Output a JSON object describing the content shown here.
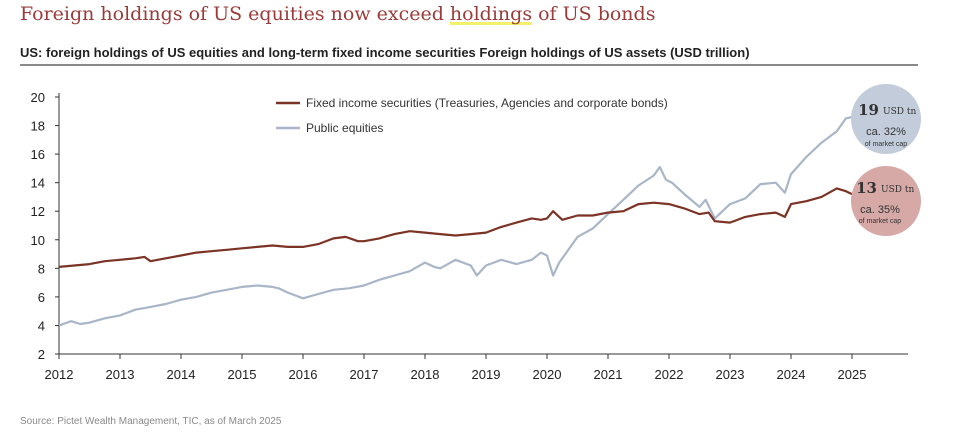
{
  "header": {
    "title_pre": "Foreign holdings of US equities now exceed ",
    "title_mark": "holdings",
    "title_post": " of US bonds",
    "subtitle": "US: foreign holdings of US equities and long-term fixed income securities Foreign holdings of US assets (USD trillion)"
  },
  "footer": {
    "source": "Source: Pictet Wealth Management, TIC, as of March 2025"
  },
  "colors": {
    "fixed_income": "#7b3325",
    "equities": "#a9b6c8",
    "bubble_equities": "#c3ccdb",
    "bubble_fixed": "#d6a9a7"
  },
  "bubbles": [
    {
      "series": "equities",
      "value": "19",
      "unit": "USD tn",
      "pct": "ca. 32%",
      "note": "of market cap"
    },
    {
      "series": "fixed_income",
      "value": "13",
      "unit": "USD tn",
      "pct": "ca. 35%",
      "note": "of market cap"
    }
  ],
  "chart_data": {
    "type": "line",
    "title": "Foreign holdings of US equities now exceed holdings of US bonds",
    "subtitle": "US: foreign holdings of US equities and long-term fixed income securities Foreign holdings of US assets (USD trillion)",
    "xlabel": "",
    "ylabel": "",
    "xlim": [
      2012,
      2026
    ],
    "ylim": [
      2,
      20
    ],
    "yticks": [
      2,
      4,
      6,
      8,
      10,
      12,
      14,
      16,
      18,
      20
    ],
    "xticks": [
      2012,
      2013,
      2014,
      2015,
      2016,
      2017,
      2018,
      2019,
      2020,
      2021,
      2022,
      2023,
      2024,
      2025
    ],
    "grid": false,
    "legend": "top-center",
    "series": [
      {
        "key": "fixed_income",
        "name": "Fixed income securities (Treasuries, Agencies and corporate bonds)",
        "x": [
          2012.0,
          2012.25,
          2012.5,
          2012.75,
          2013.0,
          2013.25,
          2013.4,
          2013.5,
          2013.75,
          2014.0,
          2014.25,
          2014.5,
          2014.75,
          2015.0,
          2015.25,
          2015.5,
          2015.75,
          2016.0,
          2016.25,
          2016.5,
          2016.7,
          2016.9,
          2017.0,
          2017.25,
          2017.5,
          2017.75,
          2018.0,
          2018.25,
          2018.5,
          2018.75,
          2019.0,
          2019.25,
          2019.5,
          2019.75,
          2019.9,
          2020.0,
          2020.1,
          2020.25,
          2020.5,
          2020.75,
          2021.0,
          2021.25,
          2021.5,
          2021.75,
          2022.0,
          2022.25,
          2022.5,
          2022.65,
          2022.75,
          2023.0,
          2023.25,
          2023.5,
          2023.75,
          2023.9,
          2024.0,
          2024.25,
          2024.5,
          2024.75,
          2024.9,
          2025.0,
          2025.08
        ],
        "y": [
          8.1,
          8.2,
          8.3,
          8.5,
          8.6,
          8.7,
          8.8,
          8.5,
          8.7,
          8.9,
          9.1,
          9.2,
          9.3,
          9.4,
          9.5,
          9.6,
          9.5,
          9.5,
          9.7,
          10.1,
          10.2,
          9.9,
          9.9,
          10.1,
          10.4,
          10.6,
          10.5,
          10.4,
          10.3,
          10.4,
          10.5,
          10.9,
          11.2,
          11.5,
          11.4,
          11.5,
          12.0,
          11.4,
          11.7,
          11.7,
          11.9,
          12.0,
          12.5,
          12.6,
          12.5,
          12.2,
          11.8,
          11.9,
          11.3,
          11.2,
          11.6,
          11.8,
          11.9,
          11.6,
          12.5,
          12.7,
          13.0,
          13.6,
          13.4,
          13.2,
          13.3
        ]
      },
      {
        "key": "equities",
        "name": "Public equities",
        "x": [
          2012.0,
          2012.2,
          2012.35,
          2012.5,
          2012.75,
          2013.0,
          2013.25,
          2013.5,
          2013.75,
          2014.0,
          2014.25,
          2014.5,
          2014.75,
          2015.0,
          2015.25,
          2015.5,
          2015.6,
          2015.75,
          2016.0,
          2016.25,
          2016.5,
          2016.75,
          2017.0,
          2017.25,
          2017.5,
          2017.75,
          2018.0,
          2018.15,
          2018.25,
          2018.5,
          2018.75,
          2018.85,
          2019.0,
          2019.25,
          2019.5,
          2019.75,
          2019.9,
          2020.0,
          2020.1,
          2020.2,
          2020.3,
          2020.5,
          2020.75,
          2021.0,
          2021.25,
          2021.5,
          2021.75,
          2021.85,
          2021.95,
          2022.05,
          2022.25,
          2022.5,
          2022.6,
          2022.75,
          2023.0,
          2023.25,
          2023.5,
          2023.75,
          2023.9,
          2024.0,
          2024.25,
          2024.5,
          2024.75,
          2024.9,
          2025.0,
          2025.08
        ],
        "y": [
          4.0,
          4.3,
          4.1,
          4.2,
          4.5,
          4.7,
          5.1,
          5.3,
          5.5,
          5.8,
          6.0,
          6.3,
          6.5,
          6.7,
          6.8,
          6.7,
          6.6,
          6.3,
          5.9,
          6.2,
          6.5,
          6.6,
          6.8,
          7.2,
          7.5,
          7.8,
          8.4,
          8.1,
          8.0,
          8.6,
          8.2,
          7.5,
          8.2,
          8.6,
          8.3,
          8.6,
          9.1,
          8.9,
          7.5,
          8.4,
          9.0,
          10.2,
          10.8,
          11.8,
          12.8,
          13.8,
          14.5,
          15.1,
          14.2,
          14.0,
          13.2,
          12.3,
          12.8,
          11.5,
          12.5,
          12.9,
          13.9,
          14.0,
          13.3,
          14.6,
          15.8,
          16.8,
          17.6,
          18.5,
          18.6,
          19.0
        ]
      }
    ]
  }
}
